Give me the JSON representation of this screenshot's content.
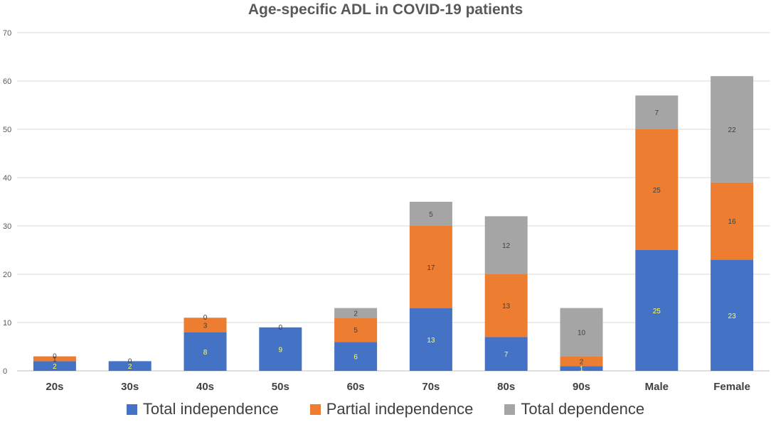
{
  "chart_data": {
    "type": "bar",
    "stacked": true,
    "title": "Age-specific ADL in COVID-19 patients",
    "xlabel": "",
    "ylabel": "",
    "ylim": [
      0,
      70
    ],
    "yticks": [
      0,
      10,
      20,
      30,
      40,
      50,
      60,
      70
    ],
    "grid": true,
    "legend_position": "bottom",
    "categories": [
      "20s",
      "30s",
      "40s",
      "50s",
      "60s",
      "70s",
      "80s",
      "90s",
      "Male",
      "Female"
    ],
    "series": [
      {
        "name": "Total independence",
        "color": "#4472C4",
        "label_color": "#FFFF66",
        "values": [
          2,
          2,
          8,
          9,
          6,
          13,
          7,
          1,
          25,
          23
        ]
      },
      {
        "name": "Partial independence",
        "color": "#ED7D31",
        "label_color": "#404040",
        "values": [
          1,
          0,
          3,
          0,
          5,
          17,
          13,
          2,
          25,
          16
        ]
      },
      {
        "name": "Total dependence",
        "color": "#A5A5A5",
        "label_color": "#404040",
        "values": [
          0,
          0,
          0,
          0,
          2,
          5,
          12,
          10,
          7,
          22
        ]
      }
    ]
  }
}
